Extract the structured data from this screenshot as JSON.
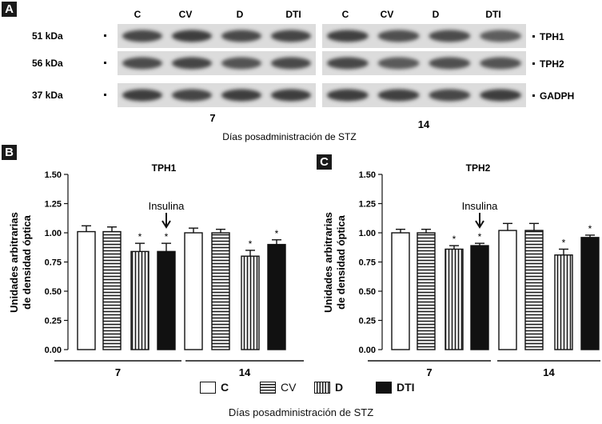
{
  "panels": {
    "a": {
      "tag": "A",
      "lane_labels": [
        "C",
        "CV",
        "D",
        "DTI",
        "C",
        "CV",
        "D",
        "DTI"
      ],
      "mw_labels": [
        "51 kDa",
        "56 kDa",
        "37 kDa"
      ],
      "protein_labels": [
        "TPH1",
        "TPH2",
        "GADPH"
      ],
      "day_labels": [
        "7",
        "14"
      ],
      "xlabel": "Días posadministración de STZ"
    },
    "b": {
      "tag": "B"
    },
    "c": {
      "tag": "C"
    }
  },
  "legend": [
    "C",
    "CV",
    "D",
    "DTI"
  ],
  "bottom_xlabel": "Días posadministración de STZ",
  "chart_data": [
    {
      "type": "bar",
      "title": "TPH1",
      "ylabel": "Unidades arbitrarias de densidad óptica",
      "ylim": [
        0,
        1.5
      ],
      "yticks": [
        "0.00",
        "0.25",
        "0.50",
        "0.75",
        "1.00",
        "1.25",
        "1.50"
      ],
      "groups": [
        "7",
        "14"
      ],
      "categories": [
        "C",
        "CV",
        "D",
        "DTI"
      ],
      "series": [
        {
          "name": "7",
          "values": [
            1.01,
            1.01,
            0.84,
            0.84
          ],
          "errors": [
            0.05,
            0.04,
            0.07,
            0.07
          ],
          "significant": [
            false,
            false,
            true,
            true
          ]
        },
        {
          "name": "14",
          "values": [
            1.0,
            1.0,
            0.8,
            0.9
          ],
          "errors": [
            0.04,
            0.03,
            0.05,
            0.04
          ],
          "significant": [
            false,
            false,
            true,
            true
          ]
        }
      ],
      "annotation": "Insulina",
      "annotation_target": {
        "group": 0,
        "bar": 3
      },
      "marker": "*"
    },
    {
      "type": "bar",
      "title": "TPH2",
      "ylabel": "Unidades arbitrarias de densidad óptica",
      "ylim": [
        0,
        1.5
      ],
      "yticks": [
        "0.00",
        "0.25",
        "0.50",
        "0.75",
        "1.00",
        "1.25",
        "1.50"
      ],
      "groups": [
        "7",
        "14"
      ],
      "categories": [
        "C",
        "CV",
        "D",
        "DTI"
      ],
      "series": [
        {
          "name": "7",
          "values": [
            1.0,
            1.0,
            0.86,
            0.89
          ],
          "errors": [
            0.03,
            0.03,
            0.03,
            0.02
          ],
          "significant": [
            false,
            false,
            true,
            true
          ]
        },
        {
          "name": "14",
          "values": [
            1.02,
            1.02,
            0.81,
            0.96
          ],
          "errors": [
            0.06,
            0.06,
            0.05,
            0.02
          ],
          "significant": [
            false,
            false,
            true,
            true
          ]
        }
      ],
      "annotation": "Insulina",
      "annotation_target": {
        "group": 0,
        "bar": 3
      },
      "marker": "*"
    }
  ]
}
